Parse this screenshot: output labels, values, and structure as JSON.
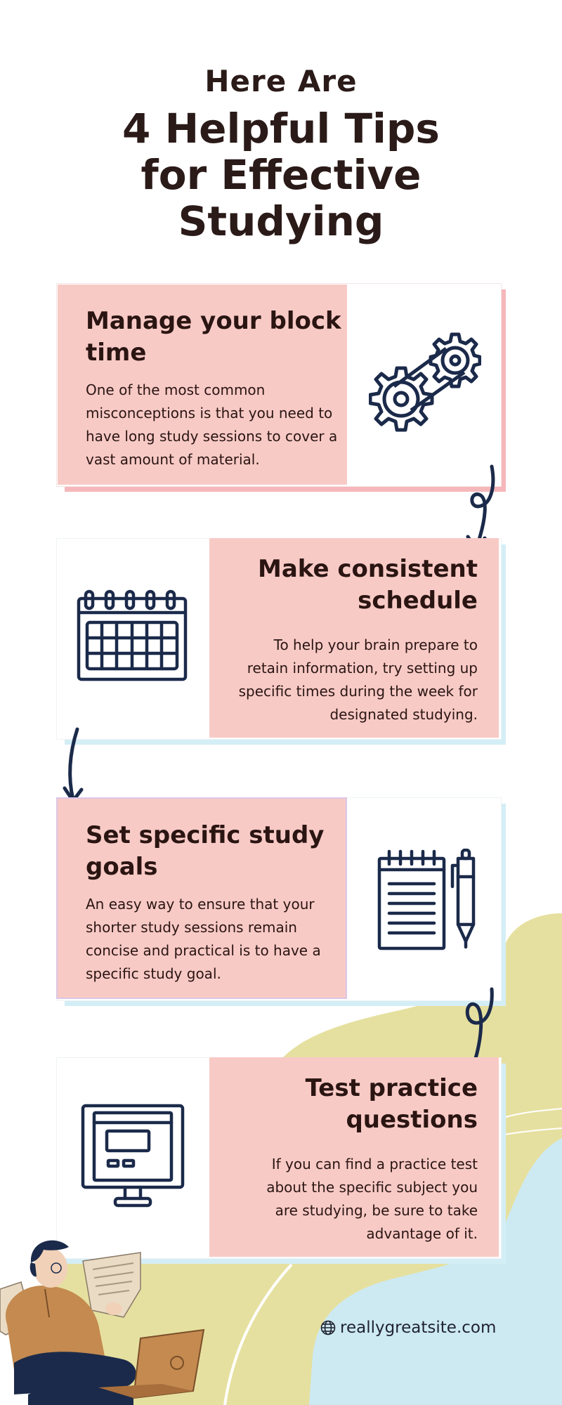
{
  "header": {
    "line1": "Here Are",
    "line2": "4 Helpful Tips for Effective Studying"
  },
  "tips": [
    {
      "title": "Manage your block time",
      "text": "One of the most common misconceptions is that you need to have long study sessions to cover a vast amount of material.",
      "icon": "gears-icon"
    },
    {
      "title": "Make consistent schedule",
      "text": "To help your brain prepare to retain information, try setting up specific times during the week for designated studying.",
      "icon": "calendar-icon"
    },
    {
      "title": "Set specific study goals",
      "text": "An easy way to ensure that your shorter study sessions remain concise and practical is to have a specific study goal.",
      "icon": "notepad-pen-icon"
    },
    {
      "title": "Test practice questions",
      "text": "If you can find a practice test about the specific subject you are studying, be sure to take advantage of it.",
      "icon": "monitor-icon"
    }
  ],
  "footer": {
    "url": "reallygreatsite.com",
    "icon": "globe-icon"
  },
  "colors": {
    "card_pink": "#f8cac6",
    "navy": "#1b2a4a",
    "yellow": "#e6e0a0",
    "light_blue": "#cdeaf3"
  }
}
